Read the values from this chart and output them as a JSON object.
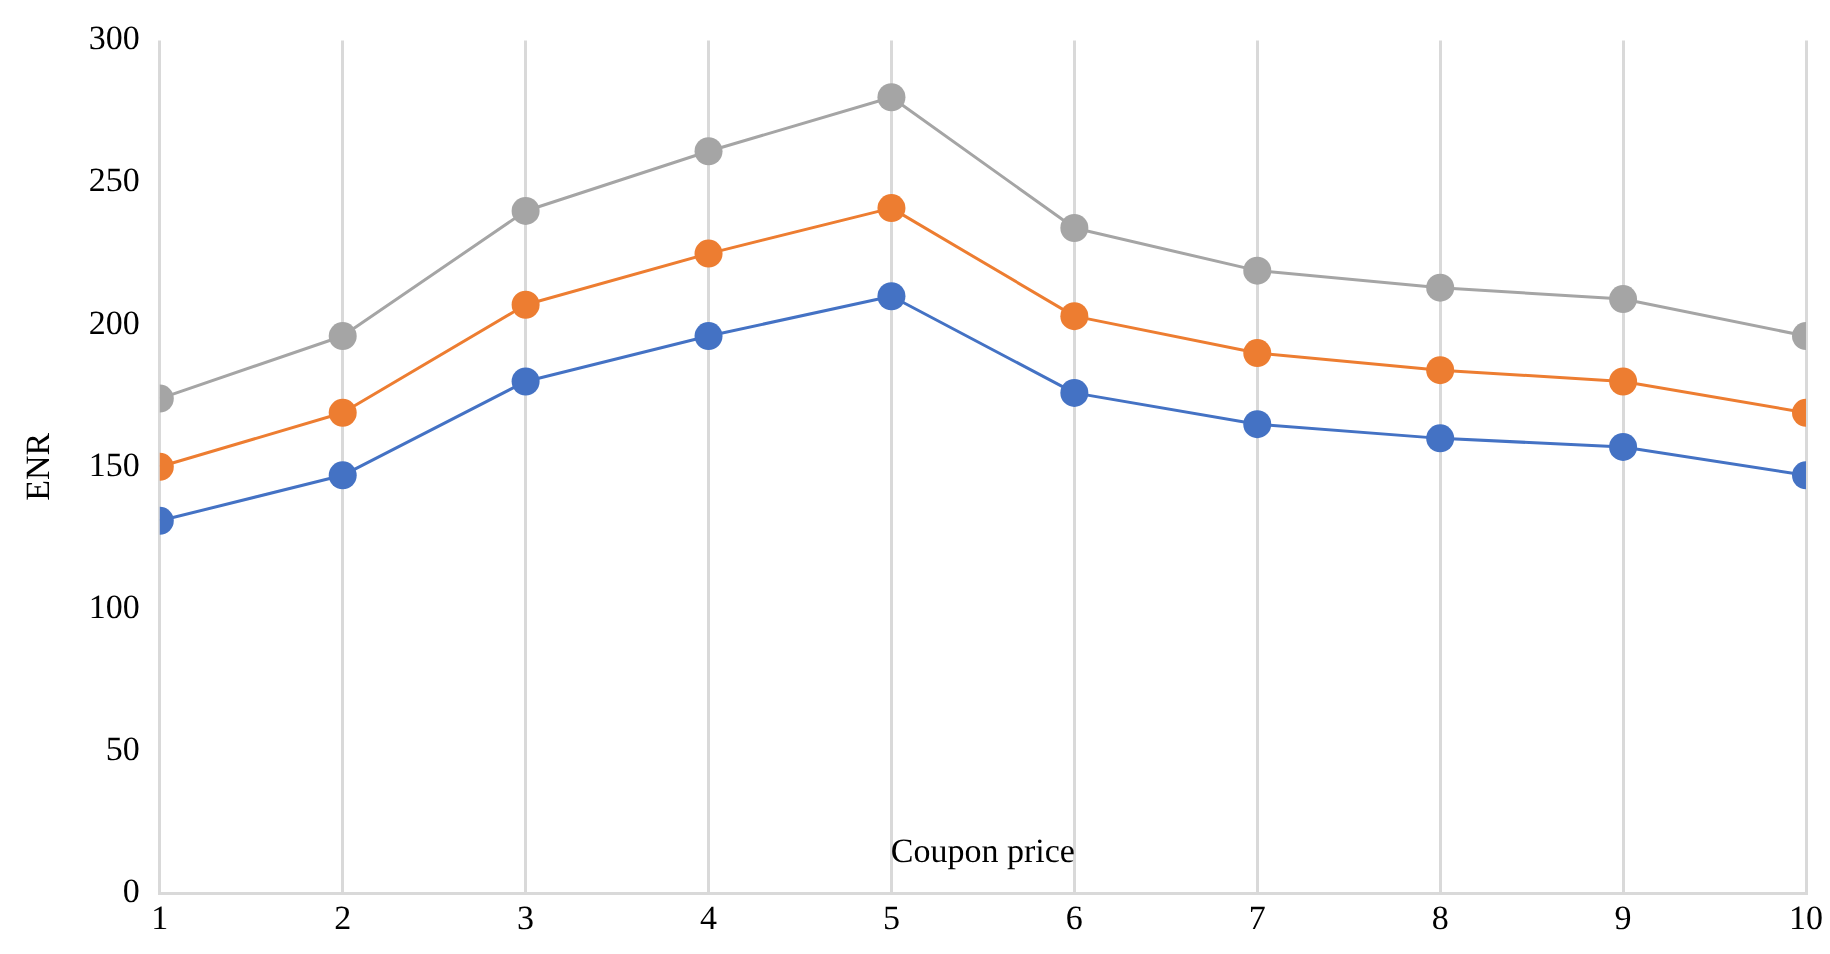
{
  "chart_data": {
    "type": "line",
    "xlabel": "Coupon price",
    "ylabel": "ENR",
    "x": [
      1,
      2,
      3,
      4,
      5,
      6,
      7,
      8,
      9,
      10
    ],
    "series": [
      {
        "color": "#a5a5a5",
        "values": [
          174,
          196,
          240,
          261,
          280,
          234,
          219,
          213,
          209,
          196
        ]
      },
      {
        "color": "#ed7d31",
        "values": [
          150,
          169,
          207,
          225,
          241,
          203,
          190,
          184,
          180,
          169
        ]
      },
      {
        "color": "#4472c4",
        "values": [
          131,
          147,
          180,
          196,
          210,
          176,
          165,
          160,
          157,
          147
        ]
      }
    ],
    "xlim": [
      1,
      10
    ],
    "xticks": [
      1,
      2,
      3,
      4,
      5,
      6,
      7,
      8,
      9,
      10
    ],
    "ylim": [
      0,
      300
    ],
    "yticks": [
      0,
      50,
      100,
      150,
      200,
      250,
      300
    ],
    "grid": "x",
    "legend": false,
    "marker": "circle",
    "line_style": "solid"
  }
}
